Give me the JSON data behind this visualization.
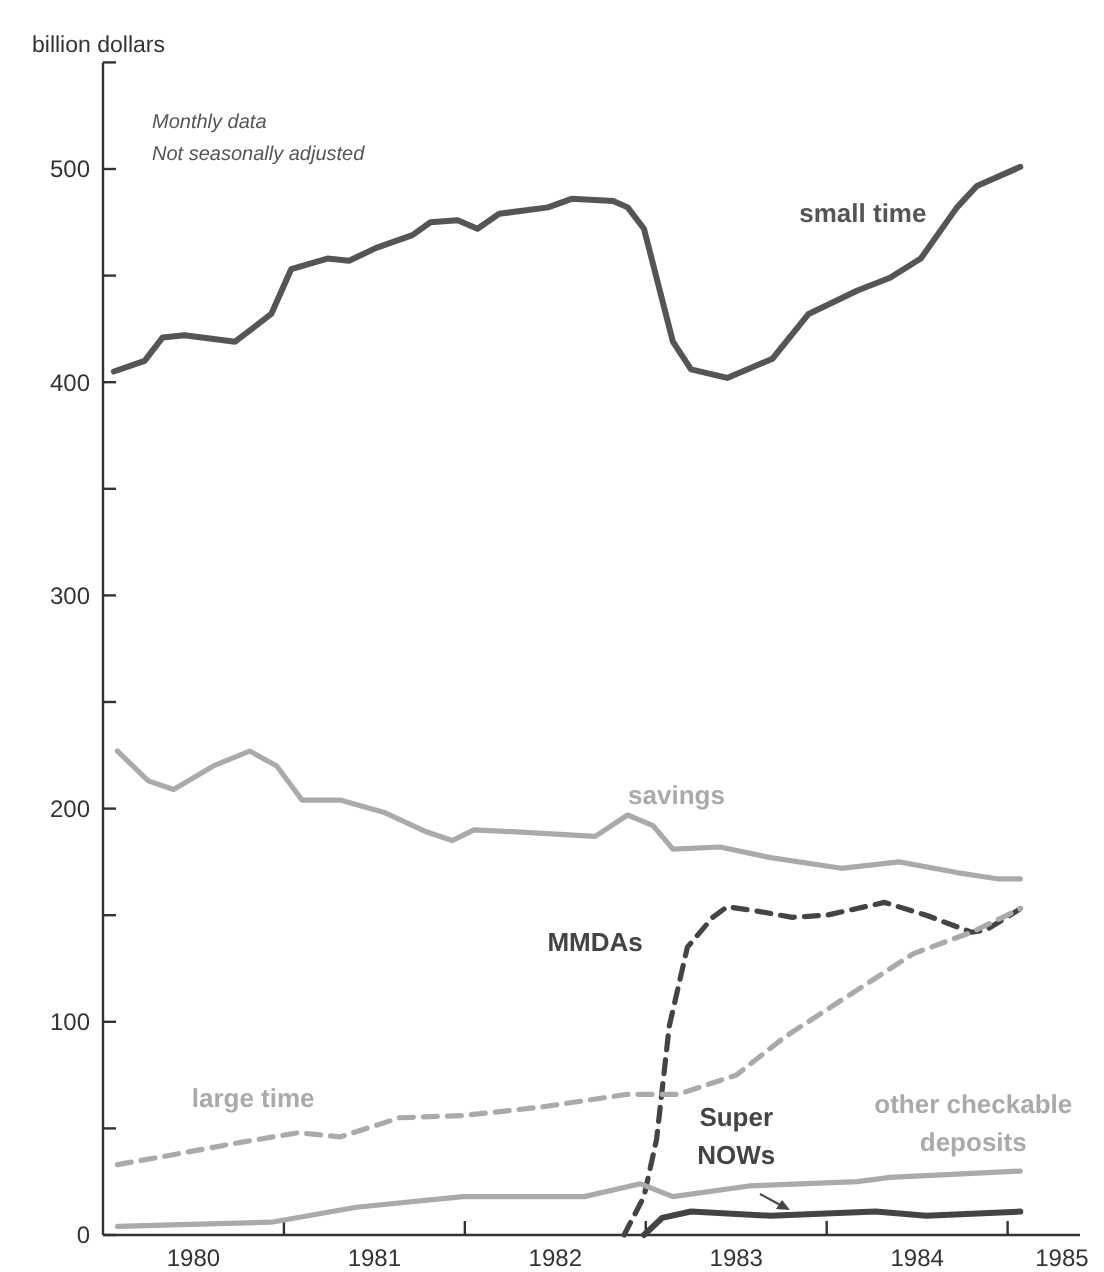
{
  "chart_data": {
    "type": "line",
    "ylabel": "billion dollars",
    "annotations": [
      "Monthly data",
      "Not seasonally adjusted"
    ],
    "xlim": [
      1980,
      1985.4
    ],
    "xticks": [
      {
        "value": 1980.5,
        "label": "1980"
      },
      {
        "value": 1981,
        "label": null
      },
      {
        "value": 1981.5,
        "label": "1981"
      },
      {
        "value": 1982,
        "label": null
      },
      {
        "value": 1982.5,
        "label": "1982"
      },
      {
        "value": 1983,
        "label": null
      },
      {
        "value": 1983.5,
        "label": "1983"
      },
      {
        "value": 1984,
        "label": null
      },
      {
        "value": 1984.5,
        "label": "1984"
      },
      {
        "value": 1985,
        "label": null
      },
      {
        "value": 1985.3,
        "label": "1985"
      }
    ],
    "ylim": [
      0,
      550
    ],
    "yticks": [
      0,
      {
        "value": 50,
        "label": null
      },
      100,
      {
        "value": 150,
        "label": null
      },
      200,
      {
        "value": 250,
        "label": null
      },
      300,
      {
        "value": 350,
        "label": null
      },
      400,
      {
        "value": 450,
        "label": null
      },
      500,
      {
        "value": 550,
        "label": null
      }
    ],
    "grid": false,
    "legend": false,
    "marker": "none",
    "series": [
      {
        "name": "small time",
        "color": "#555555",
        "line_style": "solid",
        "x": [
          1980.06,
          1980.23,
          1980.33,
          1980.45,
          1980.73,
          1980.93,
          1981.04,
          1981.24,
          1981.36,
          1981.51,
          1981.71,
          1981.81,
          1981.96,
          1982.07,
          1982.19,
          1982.46,
          1982.59,
          1982.82,
          1982.9,
          1982.99,
          1983.15,
          1983.25,
          1983.45,
          1983.7,
          1983.9,
          1984.17,
          1984.35,
          1984.52,
          1984.72,
          1984.83,
          1985.07
        ],
        "values": [
          405,
          410,
          421,
          422,
          419,
          432,
          453,
          458,
          457,
          463,
          469,
          475,
          476,
          472,
          479,
          482,
          486,
          485,
          482,
          472,
          419,
          406,
          402,
          411,
          432,
          443,
          449,
          458,
          482,
          492,
          501
        ]
      },
      {
        "name": "savings",
        "color": "#aaaaaa",
        "line_style": "solid",
        "x": [
          1980.08,
          1980.25,
          1980.39,
          1980.61,
          1980.81,
          1980.96,
          1981.1,
          1981.31,
          1981.56,
          1981.79,
          1981.93,
          1982.05,
          1982.31,
          1982.72,
          1982.9,
          1983.04,
          1983.15,
          1983.41,
          1983.69,
          1984.08,
          1984.4,
          1984.72,
          1984.95,
          1985.07
        ],
        "values": [
          227,
          213,
          209,
          220,
          227,
          220,
          204,
          204,
          198,
          189,
          185,
          190,
          189,
          187,
          197,
          192,
          181,
          182,
          177,
          172,
          175,
          170,
          167,
          167
        ]
      },
      {
        "name": "MMDAs",
        "color": "#444444",
        "line_style": "dashed",
        "x": [
          1982.88,
          1982.99,
          1983.06,
          1983.13,
          1983.23,
          1983.37,
          1983.45,
          1983.61,
          1983.81,
          1984.0,
          1984.32,
          1984.55,
          1984.8,
          1984.88,
          1985.07
        ],
        "values": [
          0,
          18,
          45,
          98,
          135,
          149,
          154,
          152,
          149,
          150,
          156,
          150,
          142,
          143,
          153
        ]
      },
      {
        "name": "large time",
        "color": "#aaaaaa",
        "line_style": "dashed",
        "x": [
          1980.08,
          1980.41,
          1980.73,
          1981.08,
          1981.31,
          1981.64,
          1981.99,
          1982.42,
          1982.9,
          1983.18,
          1983.5,
          1983.77,
          1984.17,
          1984.48,
          1984.8,
          1985.07
        ],
        "values": [
          33,
          38,
          43,
          48,
          46,
          55,
          56,
          60,
          66,
          66,
          75,
          93,
          115,
          132,
          142,
          153
        ]
      },
      {
        "name": "other checkable deposits",
        "color": "#aaaaaa",
        "line_style": "solid",
        "x": [
          1980.08,
          1980.93,
          1981.4,
          1981.99,
          1982.66,
          1982.97,
          1983.15,
          1983.57,
          1984.17,
          1984.35,
          1985.07
        ],
        "values": [
          4,
          6,
          13,
          18,
          18,
          24,
          18,
          23,
          25,
          27,
          30
        ]
      },
      {
        "name": "Super NOWs",
        "color": "#444444",
        "line_style": "solid",
        "x": [
          1982.99,
          1983.09,
          1983.25,
          1983.69,
          1984.27,
          1984.55,
          1985.07
        ],
        "values": [
          0,
          8,
          11,
          9,
          11,
          9,
          11
        ]
      }
    ]
  }
}
